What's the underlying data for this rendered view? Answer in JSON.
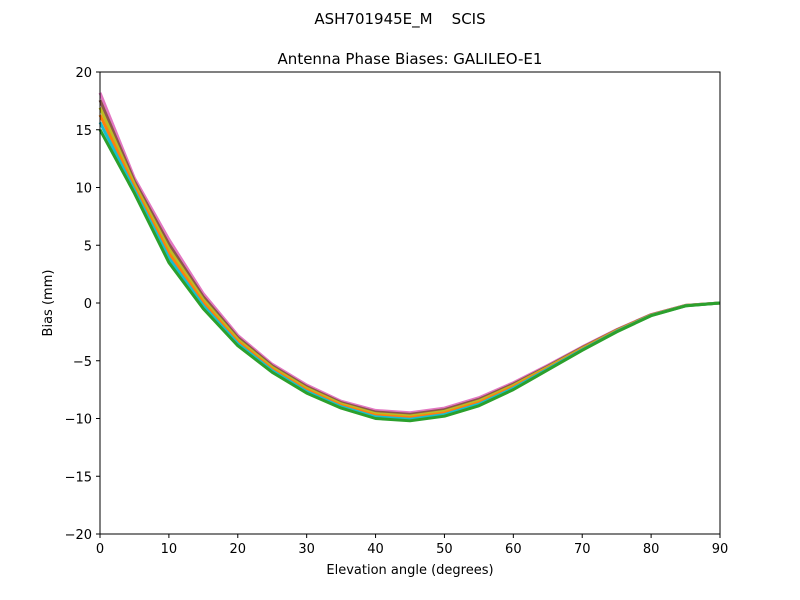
{
  "chart_data": {
    "type": "line",
    "suptitle": "ASH701945E_M    SCIS",
    "title": "Antenna Phase Biases: GALILEO-E1",
    "xlabel": "Elevation angle (degrees)",
    "ylabel": "Bias (mm)",
    "xlim": [
      0,
      90
    ],
    "ylim": [
      -20,
      20
    ],
    "xticks": [
      0,
      10,
      20,
      30,
      40,
      50,
      60,
      70,
      80,
      90
    ],
    "yticks": [
      -20,
      -15,
      -10,
      -5,
      0,
      5,
      10,
      15,
      20
    ],
    "ytick_labels": [
      "−20",
      "−15",
      "−10",
      "−5",
      "0",
      "5",
      "10",
      "15",
      "20"
    ],
    "grid": false,
    "legend": "none",
    "x": [
      0,
      5,
      10,
      15,
      20,
      25,
      30,
      35,
      40,
      45,
      50,
      55,
      60,
      65,
      70,
      75,
      80,
      85,
      90
    ],
    "series": [
      {
        "color": "#e377c2",
        "values": [
          18.2,
          10.8,
          5.5,
          0.8,
          -2.8,
          -5.3,
          -7.1,
          -8.5,
          -9.3,
          -9.5,
          -9.1,
          -8.2,
          -6.9,
          -5.4,
          -3.8,
          -2.3,
          -1.0,
          -0.2,
          0
        ]
      },
      {
        "color": "#8c564b",
        "values": [
          17.56,
          10.54,
          5.1,
          0.54,
          -2.98,
          -5.44,
          -7.24,
          -8.62,
          -9.44,
          -9.64,
          -9.24,
          -8.34,
          -7.02,
          -5.48,
          -3.86,
          -2.34,
          -1.02,
          -0.21,
          0
        ]
      },
      {
        "color": "#bcbd22",
        "values": [
          16.92,
          10.28,
          4.7,
          0.28,
          -3.16,
          -5.58,
          -7.38,
          -8.74,
          -9.58,
          -9.78,
          -9.38,
          -8.48,
          -7.14,
          -5.56,
          -3.92,
          -2.38,
          -1.04,
          -0.22,
          0
        ]
      },
      {
        "color": "#ff7f0e",
        "values": [
          16.28,
          10.02,
          4.3,
          0.02,
          -3.34,
          -5.72,
          -7.52,
          -8.86,
          -9.72,
          -9.92,
          -9.52,
          -8.62,
          -7.26,
          -5.64,
          -3.98,
          -2.42,
          -1.06,
          -0.23,
          0
        ]
      },
      {
        "color": "#17becf",
        "values": [
          15.64,
          9.76,
          3.9,
          -0.24,
          -3.52,
          -5.86,
          -7.66,
          -8.98,
          -9.86,
          -10.06,
          -9.66,
          -8.76,
          -7.38,
          -5.72,
          -4.04,
          -2.46,
          -1.08,
          -0.24,
          0
        ]
      },
      {
        "color": "#2ca02c",
        "values": [
          15.0,
          9.5,
          3.5,
          -0.5,
          -3.7,
          -6.0,
          -7.8,
          -9.1,
          -10.0,
          -10.2,
          -9.8,
          -8.9,
          -7.5,
          -5.8,
          -4.1,
          -2.5,
          -1.1,
          -0.25,
          0
        ]
      }
    ]
  }
}
